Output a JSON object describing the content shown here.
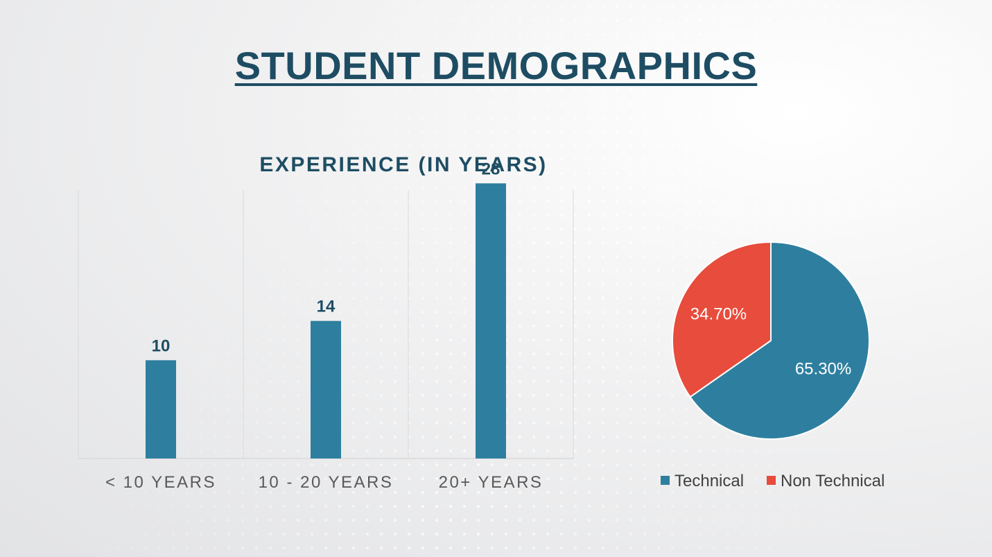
{
  "page_title": "STUDENT DEMOGRAPHICS",
  "chart_data": [
    {
      "type": "bar",
      "title": "EXPERIENCE (IN YEARS)",
      "categories": [
        "< 10 YEARS",
        "10 - 20 YEARS",
        "20+ YEARS"
      ],
      "values": [
        10,
        14,
        28
      ],
      "data_labels": [
        "10",
        "14",
        "28"
      ],
      "ylim": [
        0,
        30
      ],
      "grid": "vertical category separators",
      "color": "#2e7f9f"
    },
    {
      "type": "pie",
      "slices": [
        {
          "label": "Technical",
          "value": 65.3,
          "display": "65.30%",
          "color": "#2e7f9f"
        },
        {
          "label": "Non Technical",
          "value": 34.7,
          "display": "34.70%",
          "color": "#e74c3c"
        }
      ],
      "legend_position": "bottom"
    }
  ]
}
